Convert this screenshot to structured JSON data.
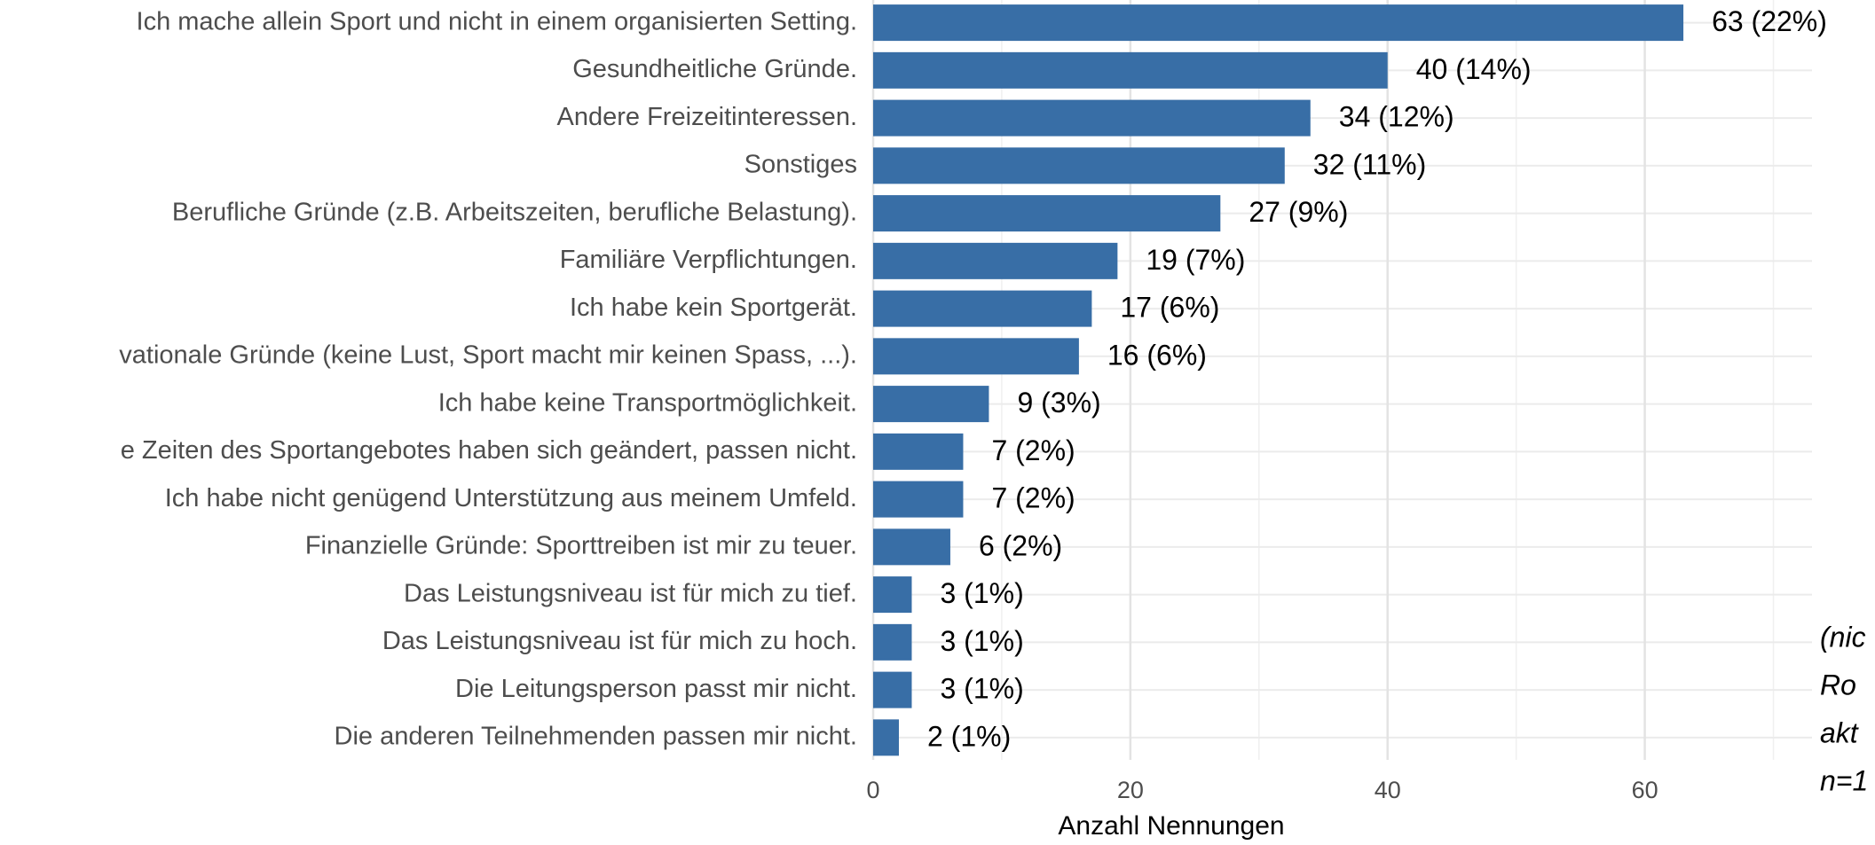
{
  "chart_data": {
    "type": "bar",
    "orientation": "horizontal",
    "categories": [
      "Ich mache allein Sport und nicht in einem organisierten Setting.",
      "Gesundheitliche Gründe.",
      "Andere Freizeitinteressen.",
      "Sonstiges",
      "Berufliche Gründe (z.B. Arbeitszeiten, berufliche Belastung).",
      "Familiäre Verpflichtungen.",
      "Ich habe kein Sportgerät.",
      "vationale Gründe (keine Lust, Sport macht mir keinen Spass, ...).",
      "Ich habe keine Transportmöglichkeit.",
      "e Zeiten des Sportangebotes haben sich geändert, passen nicht.",
      "Ich habe nicht genügend Unterstützung aus meinem Umfeld.",
      "Finanzielle Gründe: Sporttreiben ist mir zu teuer.",
      "Das Leistungsniveau ist für mich zu tief.",
      "Das Leistungsniveau ist für mich zu hoch.",
      "Die Leitungsperson passt mir nicht.",
      "Die anderen Teilnehmenden passen mir nicht."
    ],
    "values": [
      63,
      40,
      34,
      32,
      27,
      19,
      17,
      16,
      9,
      7,
      7,
      6,
      3,
      3,
      3,
      2
    ],
    "value_labels": [
      "63 (22%)",
      "40 (14%)",
      "34 (12%)",
      "32 (11%)",
      "27 (9%)",
      "19 (7%)",
      "17 (6%)",
      "16 (6%)",
      "9 (3%)",
      "7 (2%)",
      "7 (2%)",
      "6 (2%)",
      "3 (1%)",
      "3 (1%)",
      "3 (1%)",
      "2 (1%)"
    ],
    "color": "#386ea6",
    "xlabel": "Anzahl Nennungen",
    "xlim": [
      0,
      73
    ],
    "xticks": [
      0,
      20,
      40,
      60
    ],
    "grid": true,
    "annotation": [
      "(nic",
      "Ro",
      "akt",
      "n=1"
    ]
  }
}
